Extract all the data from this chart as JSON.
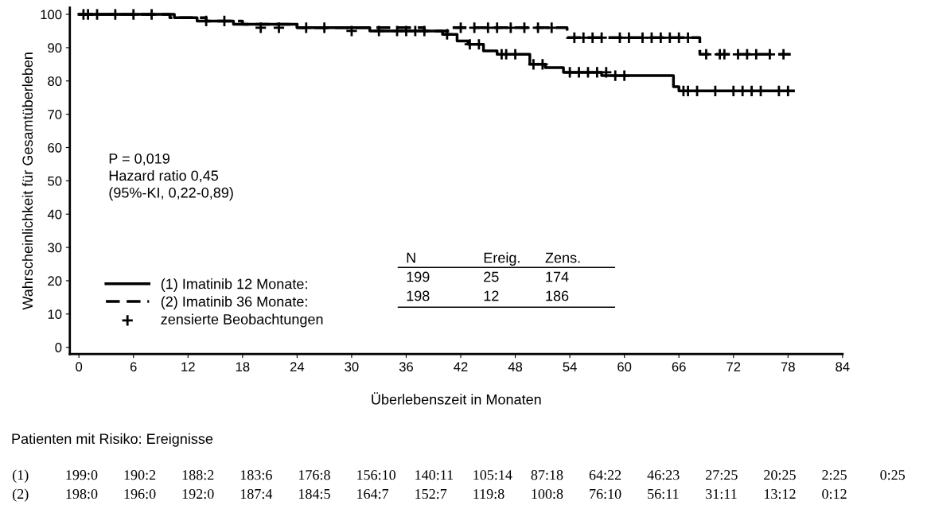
{
  "chart_data": {
    "type": "step",
    "xlabel": "Überlebenszeit in Monaten",
    "ylabel": "Wahrscheinlichkeit für Gesamtüberleben",
    "xlim": [
      -1,
      84
    ],
    "xticks": [
      0,
      6,
      12,
      18,
      24,
      30,
      36,
      42,
      48,
      54,
      60,
      66,
      72,
      78,
      84
    ],
    "ylim": [
      -2,
      102
    ],
    "yticks": [
      0,
      10,
      20,
      30,
      40,
      50,
      60,
      70,
      80,
      90,
      100
    ],
    "grid": false,
    "legend": "bottom left",
    "series": [
      {
        "name": "(1) Imatinib 12 Monate:",
        "color": "#000000",
        "line_style": "solid",
        "x": [
          0,
          10.5,
          13,
          17,
          24,
          32,
          40,
          41.6,
          42.8,
          44.5,
          46,
          49.6,
          51.3,
          53.3,
          57.5,
          65.4,
          66,
          78.6
        ],
        "values": [
          100,
          99,
          98,
          97,
          96,
          95,
          94,
          92,
          91,
          89,
          88,
          85,
          84,
          82.6,
          81.6,
          78.3,
          77,
          77
        ]
      },
      {
        "name": "(2) Imatinib 36 Monate:",
        "color": "#000000",
        "line_style": "dashed",
        "x": [
          0,
          10,
          14,
          18,
          24,
          38,
          41,
          53.7,
          68.3,
          78.3
        ],
        "values": [
          100,
          99,
          98,
          97,
          96,
          95,
          96,
          93,
          88,
          88
        ]
      },
      {
        "name": "zensierte Beobachtungen",
        "type": "scatter",
        "color": "#000000",
        "marker": "cross",
        "x": [
          0.5,
          1,
          2,
          4,
          6,
          8,
          14,
          16,
          20,
          22,
          25,
          27,
          30,
          33,
          35,
          36,
          37,
          38,
          40.5,
          43,
          44,
          46.5,
          47,
          48,
          50,
          51,
          54,
          55,
          56,
          57,
          58,
          59,
          60,
          66.5,
          67,
          68,
          70,
          72,
          73,
          74,
          75,
          77,
          78,
          42,
          43.5,
          45,
          46,
          47.5,
          49,
          50.5,
          52,
          54.5,
          55.5,
          56.5,
          57.5,
          59.5,
          60.5,
          62,
          63,
          64,
          65,
          66,
          67,
          69,
          70.5,
          71,
          72.5,
          73.5,
          74.5,
          76,
          77.5
        ],
        "values": [
          100,
          100,
          100,
          100,
          100,
          100,
          98,
          98,
          96,
          96,
          96,
          96,
          95,
          95,
          95,
          95,
          95,
          95,
          94,
          91,
          91,
          88,
          88,
          88,
          85,
          85,
          82.6,
          82.6,
          82.6,
          82.6,
          82.6,
          81.6,
          81.6,
          77,
          77,
          77,
          77,
          77,
          77,
          77,
          77,
          77,
          77,
          96,
          96,
          96,
          96,
          96,
          96,
          96,
          96,
          93,
          93,
          93,
          93,
          93,
          93,
          93,
          93,
          93,
          93,
          93,
          93,
          88,
          88,
          88,
          88,
          88,
          88,
          88,
          88
        ]
      }
    ],
    "annotations": [
      "P = 0,019\nHazard ratio 0,45\n(95%-KI, 0,22-0,89)",
      "N",
      "Ereig.",
      "Zens.",
      "199",
      "25",
      "174",
      "198",
      "12",
      "186",
      "Patienten mit Risiko: Ereignisse",
      "(1) 199:0 190:2 188:2 183:6 176:8 156:10 140:11 105:14 87:18 64:22 46:23 27:25 20:25 2:25 0:25",
      "(2) 198:0 196:0 192:0 187:4 184:5 164:7 152:7 119:8 100:8 76:10 56:11 31:11 13:12 0:12"
    ]
  }
}
